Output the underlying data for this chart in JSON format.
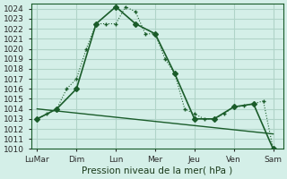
{
  "background_color": "#d4efe8",
  "grid_color": "#b0d4c8",
  "line_color": "#1a5c2a",
  "xtick_labels": [
    "LuMar",
    "Dim",
    "Lun",
    "Mer",
    "Jeu",
    "Ven",
    "Sam"
  ],
  "xlabel": "Pression niveau de la mer( hPa )",
  "ylim": [
    1010,
    1024.5
  ],
  "yticks": [
    1010,
    1011,
    1012,
    1013,
    1014,
    1015,
    1016,
    1017,
    1018,
    1019,
    1020,
    1021,
    1022,
    1023,
    1024
  ],
  "series1_x": [
    0,
    0.5,
    1.0,
    1.5,
    2.0,
    2.5,
    3.0,
    3.5,
    4.0,
    4.5,
    5.0,
    5.5,
    6.0,
    6.5,
    7.0,
    7.5,
    8.0,
    8.5,
    9.0,
    9.5,
    10.0,
    10.5,
    11.0,
    11.5,
    12.0
  ],
  "series1_y": [
    1013.0,
    1013.5,
    1014.0,
    1016.0,
    1017.0,
    1020.0,
    1022.5,
    1022.5,
    1022.5,
    1024.2,
    1023.7,
    1021.5,
    1021.5,
    1019.0,
    1017.5,
    1014.0,
    1013.5,
    1013.0,
    1013.0,
    1013.5,
    1014.2,
    1014.3,
    1014.5,
    1014.8,
    1010.0
  ],
  "series2_x": [
    0,
    1.0,
    2.0,
    3.0,
    4.0,
    5.0,
    6.0,
    7.0,
    8.0,
    9.0,
    10.0,
    11.0,
    12.0
  ],
  "series2_y": [
    1013.0,
    1014.0,
    1016.0,
    1022.5,
    1024.2,
    1022.5,
    1021.5,
    1017.5,
    1013.0,
    1013.0,
    1014.2,
    1014.5,
    1010.0
  ],
  "trend_x": [
    0,
    12.0
  ],
  "trend_y": [
    1014.0,
    1011.5
  ],
  "xtick_positions": [
    0,
    2.0,
    4.0,
    6.0,
    8.0,
    10.0,
    12.0
  ]
}
